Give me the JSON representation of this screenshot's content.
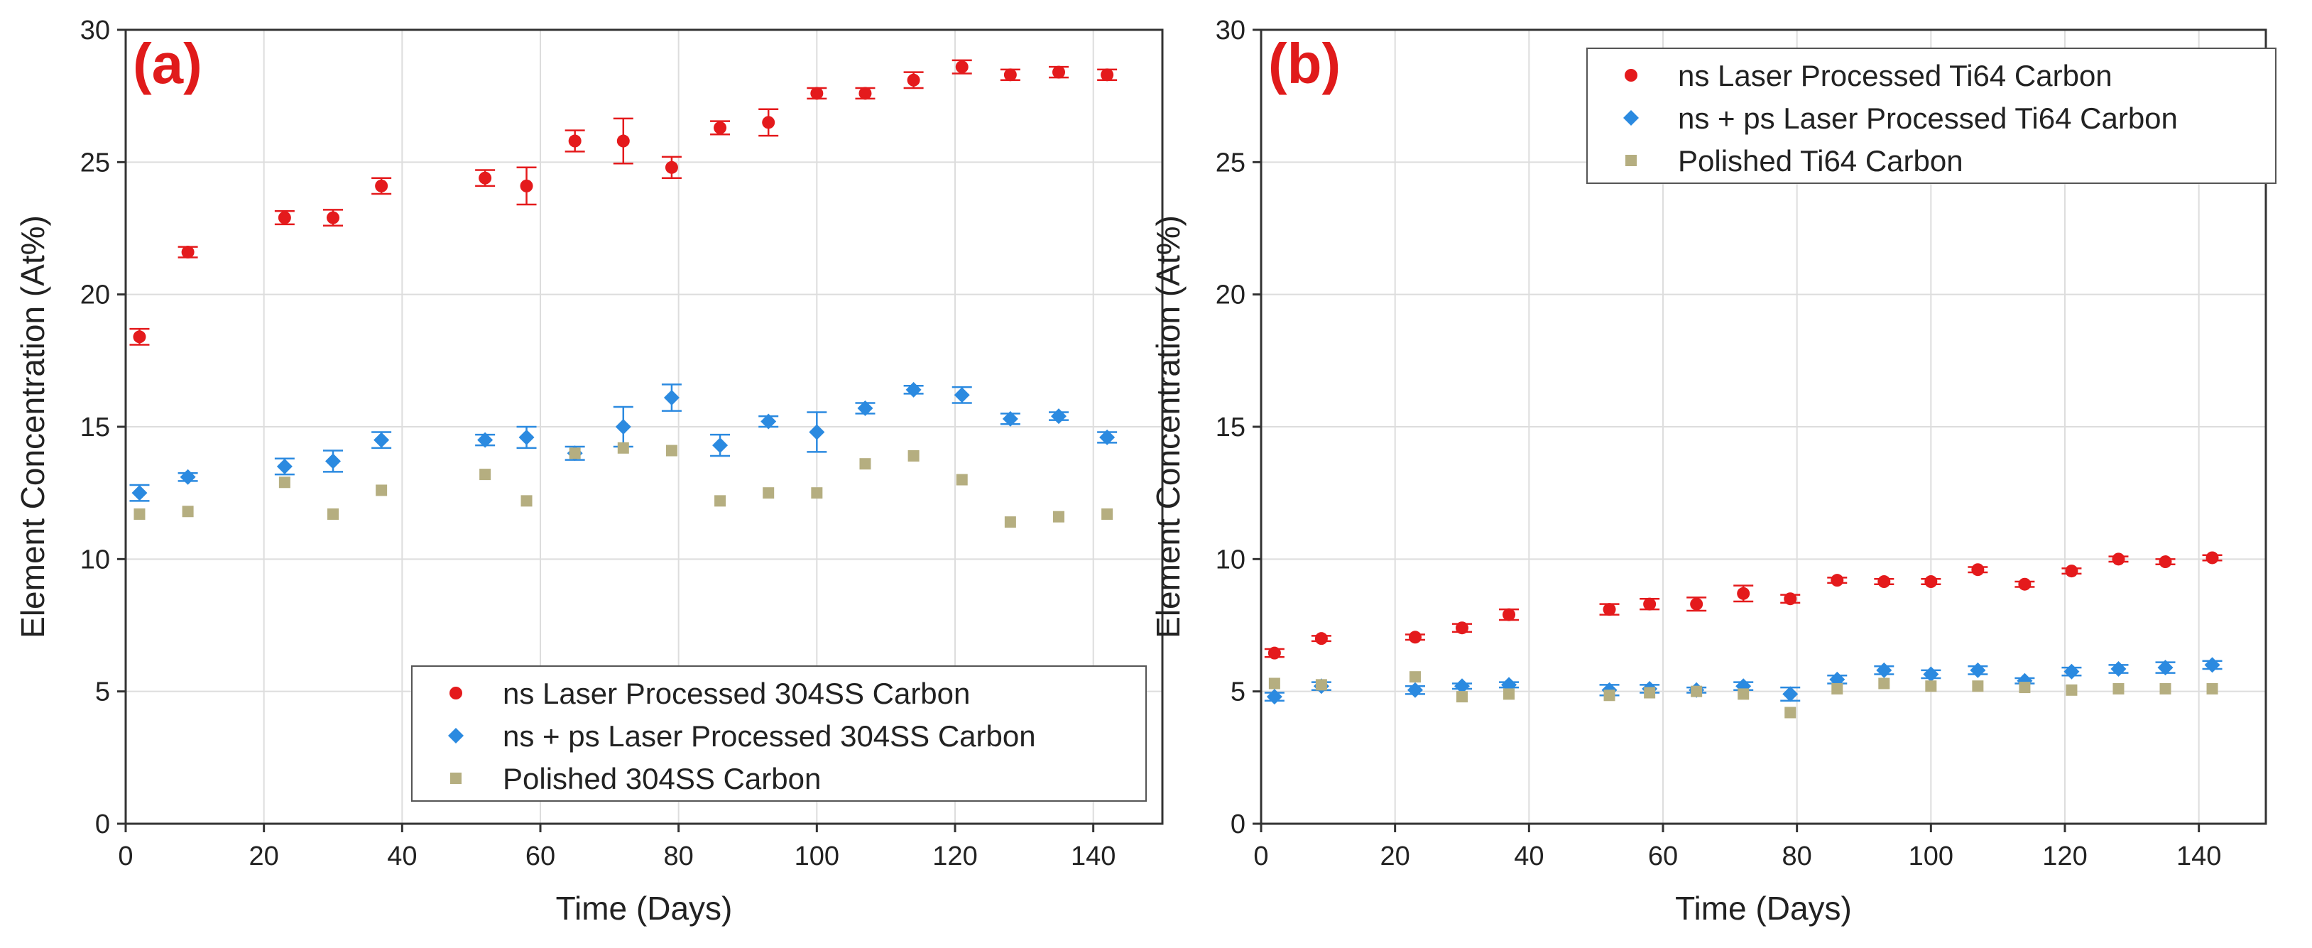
{
  "chart_data": [
    {
      "type": "scatter",
      "panel_label": "(a)",
      "xlabel": "Time (Days)",
      "ylabel": "Element Concentration (At%)",
      "xlim": [
        0,
        150
      ],
      "ylim": [
        0,
        30
      ],
      "xticks": [
        0,
        20,
        40,
        60,
        80,
        100,
        120,
        140
      ],
      "yticks": [
        0,
        5,
        10,
        15,
        20,
        25,
        30
      ],
      "grid": true,
      "legend_position": "bottom-right",
      "series": [
        {
          "name": "ns Laser Processed 304SS Carbon",
          "marker": "circle",
          "color": "#e41a1c",
          "points": [
            {
              "x": 2,
              "y": 18.4,
              "err": 0.3
            },
            {
              "x": 9,
              "y": 21.6,
              "err": 0.2
            },
            {
              "x": 23,
              "y": 22.9,
              "err": 0.25
            },
            {
              "x": 30,
              "y": 22.9,
              "err": 0.3
            },
            {
              "x": 37,
              "y": 24.1,
              "err": 0.3
            },
            {
              "x": 52,
              "y": 24.4,
              "err": 0.3
            },
            {
              "x": 58,
              "y": 24.1,
              "err": 0.7
            },
            {
              "x": 65,
              "y": 25.8,
              "err": 0.4
            },
            {
              "x": 72,
              "y": 25.8,
              "err": 0.85
            },
            {
              "x": 79,
              "y": 24.8,
              "err": 0.4
            },
            {
              "x": 86,
              "y": 26.3,
              "err": 0.25
            },
            {
              "x": 93,
              "y": 26.5,
              "err": 0.5
            },
            {
              "x": 100,
              "y": 27.6,
              "err": 0.2
            },
            {
              "x": 107,
              "y": 27.6,
              "err": 0.2
            },
            {
              "x": 114,
              "y": 28.1,
              "err": 0.3
            },
            {
              "x": 121,
              "y": 28.6,
              "err": 0.25
            },
            {
              "x": 128,
              "y": 28.3,
              "err": 0.2
            },
            {
              "x": 135,
              "y": 28.4,
              "err": 0.2
            },
            {
              "x": 142,
              "y": 28.3,
              "err": 0.2
            }
          ]
        },
        {
          "name": "ns + ps Laser Processed 304SS Carbon",
          "marker": "diamond",
          "color": "#2b8ae0",
          "points": [
            {
              "x": 2,
              "y": 12.5,
              "err": 0.3
            },
            {
              "x": 9,
              "y": 13.1,
              "err": 0.15
            },
            {
              "x": 23,
              "y": 13.5,
              "err": 0.3
            },
            {
              "x": 30,
              "y": 13.7,
              "err": 0.4
            },
            {
              "x": 37,
              "y": 14.5,
              "err": 0.3
            },
            {
              "x": 52,
              "y": 14.5,
              "err": 0.2
            },
            {
              "x": 58,
              "y": 14.6,
              "err": 0.4
            },
            {
              "x": 65,
              "y": 14.0,
              "err": 0.25
            },
            {
              "x": 72,
              "y": 15.0,
              "err": 0.75
            },
            {
              "x": 79,
              "y": 16.1,
              "err": 0.5
            },
            {
              "x": 86,
              "y": 14.3,
              "err": 0.4
            },
            {
              "x": 93,
              "y": 15.2,
              "err": 0.2
            },
            {
              "x": 100,
              "y": 14.8,
              "err": 0.75
            },
            {
              "x": 107,
              "y": 15.7,
              "err": 0.2
            },
            {
              "x": 114,
              "y": 16.4,
              "err": 0.15
            },
            {
              "x": 121,
              "y": 16.2,
              "err": 0.3
            },
            {
              "x": 128,
              "y": 15.3,
              "err": 0.2
            },
            {
              "x": 135,
              "y": 15.4,
              "err": 0.15
            },
            {
              "x": 142,
              "y": 14.6,
              "err": 0.2
            }
          ]
        },
        {
          "name": "Polished 304SS Carbon",
          "marker": "square",
          "color": "#b5ae80",
          "points": [
            {
              "x": 2,
              "y": 11.7
            },
            {
              "x": 9,
              "y": 11.8
            },
            {
              "x": 23,
              "y": 12.9
            },
            {
              "x": 30,
              "y": 11.7
            },
            {
              "x": 37,
              "y": 12.6
            },
            {
              "x": 52,
              "y": 13.2
            },
            {
              "x": 58,
              "y": 12.2
            },
            {
              "x": 65,
              "y": 14.0
            },
            {
              "x": 72,
              "y": 14.2
            },
            {
              "x": 79,
              "y": 14.1
            },
            {
              "x": 86,
              "y": 12.2
            },
            {
              "x": 93,
              "y": 12.5
            },
            {
              "x": 100,
              "y": 12.5
            },
            {
              "x": 107,
              "y": 13.6
            },
            {
              "x": 114,
              "y": 13.9
            },
            {
              "x": 121,
              "y": 13.0
            },
            {
              "x": 128,
              "y": 11.4
            },
            {
              "x": 135,
              "y": 11.6
            },
            {
              "x": 142,
              "y": 11.7
            }
          ]
        }
      ]
    },
    {
      "type": "scatter",
      "panel_label": "(b)",
      "xlabel": "Time (Days)",
      "ylabel": "Element Concentration (At%)",
      "xlim": [
        0,
        150
      ],
      "ylim": [
        0,
        30
      ],
      "xticks": [
        0,
        20,
        40,
        60,
        80,
        100,
        120,
        140
      ],
      "yticks": [
        0,
        5,
        10,
        15,
        20,
        25,
        30
      ],
      "grid": true,
      "legend_position": "top-right",
      "series": [
        {
          "name": "ns Laser Processed Ti64 Carbon",
          "marker": "circle",
          "color": "#e41a1c",
          "points": [
            {
              "x": 2,
              "y": 6.45,
              "err": 0.15
            },
            {
              "x": 9,
              "y": 7.0,
              "err": 0.1
            },
            {
              "x": 23,
              "y": 7.05,
              "err": 0.1
            },
            {
              "x": 30,
              "y": 7.4,
              "err": 0.15
            },
            {
              "x": 37,
              "y": 7.9,
              "err": 0.2
            },
            {
              "x": 52,
              "y": 8.1,
              "err": 0.2
            },
            {
              "x": 58,
              "y": 8.3,
              "err": 0.2
            },
            {
              "x": 65,
              "y": 8.3,
              "err": 0.25
            },
            {
              "x": 72,
              "y": 8.7,
              "err": 0.3
            },
            {
              "x": 79,
              "y": 8.5,
              "err": 0.15
            },
            {
              "x": 86,
              "y": 9.2,
              "err": 0.1
            },
            {
              "x": 93,
              "y": 9.15,
              "err": 0.1
            },
            {
              "x": 100,
              "y": 9.15,
              "err": 0.1
            },
            {
              "x": 107,
              "y": 9.6,
              "err": 0.1
            },
            {
              "x": 114,
              "y": 9.05,
              "err": 0.1
            },
            {
              "x": 121,
              "y": 9.55,
              "err": 0.1
            },
            {
              "x": 128,
              "y": 10.0,
              "err": 0.1
            },
            {
              "x": 135,
              "y": 9.9,
              "err": 0.1
            },
            {
              "x": 142,
              "y": 10.05,
              "err": 0.1
            }
          ]
        },
        {
          "name": "ns + ps Laser Processed Ti64 Carbon",
          "marker": "diamond",
          "color": "#2b8ae0",
          "points": [
            {
              "x": 2,
              "y": 4.8,
              "err": 0.15
            },
            {
              "x": 9,
              "y": 5.2,
              "err": 0.15
            },
            {
              "x": 23,
              "y": 5.05,
              "err": 0.15
            },
            {
              "x": 30,
              "y": 5.2,
              "err": 0.1
            },
            {
              "x": 37,
              "y": 5.25,
              "err": 0.1
            },
            {
              "x": 52,
              "y": 5.05,
              "err": 0.2
            },
            {
              "x": 58,
              "y": 5.1,
              "err": 0.15
            },
            {
              "x": 65,
              "y": 5.05,
              "err": 0.1
            },
            {
              "x": 72,
              "y": 5.2,
              "err": 0.15
            },
            {
              "x": 79,
              "y": 4.9,
              "err": 0.25
            },
            {
              "x": 86,
              "y": 5.45,
              "err": 0.15
            },
            {
              "x": 93,
              "y": 5.8,
              "err": 0.15
            },
            {
              "x": 100,
              "y": 5.65,
              "err": 0.15
            },
            {
              "x": 107,
              "y": 5.8,
              "err": 0.15
            },
            {
              "x": 114,
              "y": 5.4,
              "err": 0.1
            },
            {
              "x": 121,
              "y": 5.75,
              "err": 0.15
            },
            {
              "x": 128,
              "y": 5.85,
              "err": 0.15
            },
            {
              "x": 135,
              "y": 5.9,
              "err": 0.2
            },
            {
              "x": 142,
              "y": 6.0,
              "err": 0.15
            }
          ]
        },
        {
          "name": "Polished Ti64 Carbon",
          "marker": "square",
          "color": "#b5ae80",
          "points": [
            {
              "x": 2,
              "y": 5.3
            },
            {
              "x": 9,
              "y": 5.25
            },
            {
              "x": 23,
              "y": 5.55
            },
            {
              "x": 30,
              "y": 4.8
            },
            {
              "x": 37,
              "y": 4.9
            },
            {
              "x": 52,
              "y": 4.85
            },
            {
              "x": 58,
              "y": 4.95
            },
            {
              "x": 65,
              "y": 5.0
            },
            {
              "x": 72,
              "y": 4.9
            },
            {
              "x": 79,
              "y": 4.2
            },
            {
              "x": 86,
              "y": 5.1
            },
            {
              "x": 93,
              "y": 5.3
            },
            {
              "x": 100,
              "y": 5.2
            },
            {
              "x": 107,
              "y": 5.2
            },
            {
              "x": 114,
              "y": 5.15
            },
            {
              "x": 121,
              "y": 5.05
            },
            {
              "x": 128,
              "y": 5.1
            },
            {
              "x": 135,
              "y": 5.1
            },
            {
              "x": 142,
              "y": 5.1
            }
          ]
        }
      ]
    }
  ]
}
